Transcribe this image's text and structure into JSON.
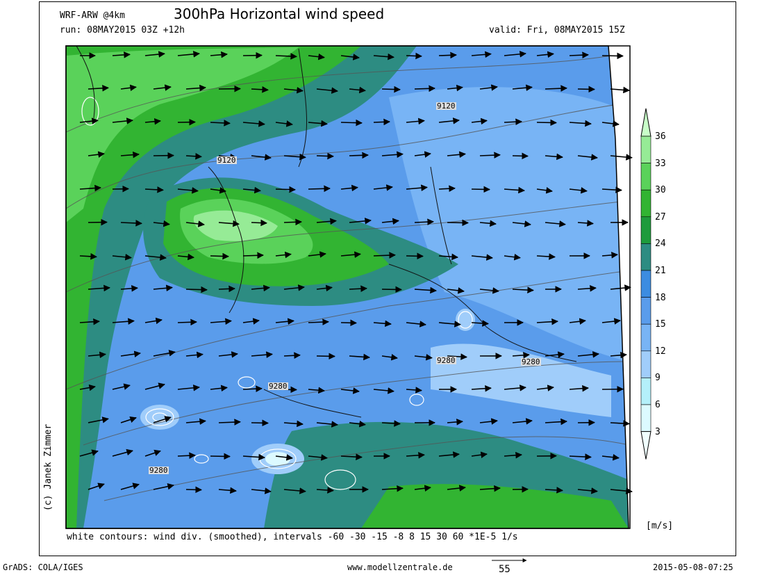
{
  "header": {
    "model": "WRF-ARW @4km",
    "title": "300hPa Horizontal wind speed",
    "run": "run: 08MAY2015 03Z +12h",
    "valid": "valid: Fri, 08MAY2015 15Z"
  },
  "author": "(c) Janek Zimmer",
  "caption": "white contours: wind div. (smoothed), intervals -60 -30 -15 -8 8 15 30 60 *1E-5 1/s",
  "colorbar": {
    "units": "[m/s]",
    "ticks": [
      "36",
      "33",
      "30",
      "27",
      "24",
      "21",
      "18",
      "15",
      "12",
      "9",
      "6",
      "3"
    ],
    "colors": [
      "#c8ffc8",
      "#96eb96",
      "#5ad25a",
      "#32b432",
      "#1e9b3c",
      "#2d8c82",
      "#3c8ce1",
      "#5a9ceb",
      "#78b4f5",
      "#a0cdfa",
      "#b4f0fa",
      "#dcfaff"
    ]
  },
  "contour_labels": [
    "9120",
    "9120",
    "9280",
    "9280",
    "9280",
    "9280"
  ],
  "footer": {
    "left": "GrADS: COLA/IGES",
    "center": "www.modellzentrale.de",
    "vector_ref": "55",
    "right": "2015-05-08-07:25"
  }
}
